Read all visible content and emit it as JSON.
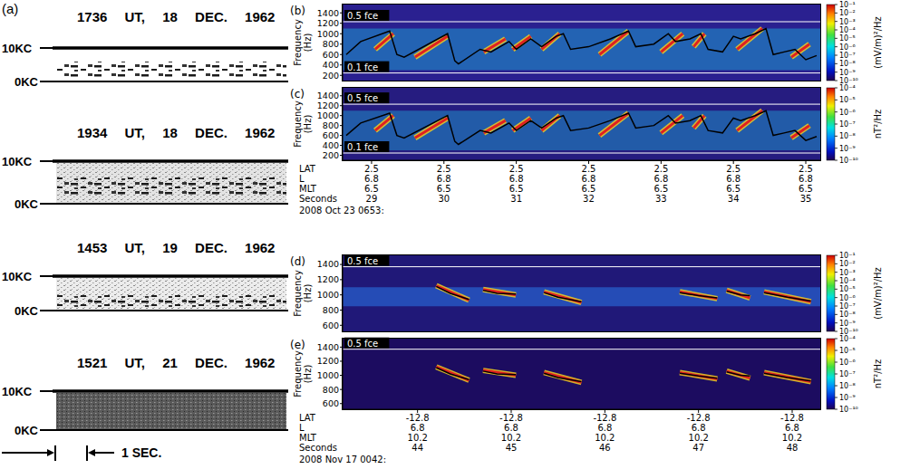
{
  "panel_a": {
    "label": "(a)",
    "strips": [
      {
        "title": "1736 UT, 18 DEC. 1962"
      },
      {
        "title": "1934 UT, 18 DEC. 1962"
      },
      {
        "title": "1453 UT, 19 DEC. 1962"
      },
      {
        "title": "1521 UT, 21 DEC. 1962"
      }
    ],
    "y_top_label": "10KC",
    "y_bottom_label": "0KC",
    "scale_label": "1 SEC."
  },
  "chart_data": [
    {
      "panel": "(b)",
      "type": "spectrogram",
      "y_label": "Frequency (Hz)",
      "xlim": [
        28.6,
        35.2
      ],
      "xticks": [
        29,
        30,
        31,
        32,
        33,
        34,
        35
      ],
      "ylim": [
        100,
        1560
      ],
      "yticks": [
        200,
        400,
        600,
        800,
        1000,
        1200,
        1400
      ],
      "tick_labels": "y",
      "reference_lines": [
        {
          "value": 1230,
          "label": "0.5 fce"
        },
        {
          "value": 246,
          "label": "0.1 fce"
        }
      ],
      "noise_band": [
        300,
        1100
      ],
      "elements": {
        "color": "#e02020",
        "items": [
          {
            "x": [
              29.05,
              29.3
            ],
            "y": [
              700,
              1000
            ]
          },
          {
            "x": [
              29.6,
              30.05
            ],
            "y": [
              550,
              950
            ]
          },
          {
            "x": [
              30.55,
              30.85
            ],
            "y": [
              650,
              900
            ]
          },
          {
            "x": [
              30.95,
              31.2
            ],
            "y": [
              700,
              950
            ]
          },
          {
            "x": [
              31.35,
              31.6
            ],
            "y": [
              700,
              1000
            ]
          },
          {
            "x": [
              32.15,
              32.55
            ],
            "y": [
              600,
              1050
            ]
          },
          {
            "x": [
              33.0,
              33.3
            ],
            "y": [
              650,
              1000
            ]
          },
          {
            "x": [
              33.45,
              33.6
            ],
            "y": [
              750,
              1000
            ]
          },
          {
            "x": [
              34.05,
              34.4
            ],
            "y": [
              700,
              1100
            ]
          },
          {
            "x": [
              34.8,
              35.05
            ],
            "y": [
              550,
              800
            ]
          }
        ]
      },
      "trace": {
        "color": "#000000",
        "x": [
          28.65,
          28.85,
          29.25,
          29.35,
          29.45,
          30.05,
          30.15,
          30.2,
          30.5,
          30.65,
          30.9,
          31.0,
          31.2,
          31.35,
          31.55,
          31.65,
          31.75,
          32.0,
          32.3,
          32.55,
          32.65,
          32.9,
          33.1,
          33.2,
          33.4,
          33.55,
          33.65,
          33.85,
          34.0,
          34.1,
          34.3,
          34.45,
          34.55,
          34.7,
          34.85,
          35.0,
          35.15
        ],
        "y": [
          600,
          850,
          1050,
          600,
          550,
          1000,
          480,
          420,
          700,
          650,
          850,
          700,
          900,
          750,
          950,
          1000,
          700,
          750,
          900,
          1050,
          750,
          800,
          1000,
          850,
          900,
          1000,
          700,
          650,
          950,
          900,
          1000,
          1100,
          600,
          650,
          700,
          500,
          580
        ]
      },
      "colorbar": {
        "label": "(mV/m)²/Hz",
        "log": true,
        "range": [
          1e-10,
          0.1
        ],
        "ticks": [
          {
            "value": 0.1,
            "label": "10⁻¹"
          },
          {
            "value": 0.01,
            "label": "10⁻²"
          },
          {
            "value": 0.001,
            "label": "10⁻³"
          },
          {
            "value": 0.0001,
            "label": "10⁻⁴"
          },
          {
            "value": 1e-05,
            "label": "10⁻⁵"
          },
          {
            "value": 1e-06,
            "label": "10⁻⁶"
          },
          {
            "value": 1e-07,
            "label": "10⁻⁷"
          },
          {
            "value": 1e-08,
            "label": "10⁻⁸"
          },
          {
            "value": 1e-09,
            "label": "10⁻⁹"
          },
          {
            "value": 1e-10,
            "label": "10⁻¹⁰"
          }
        ]
      }
    },
    {
      "panel": "(c)",
      "type": "spectrogram",
      "y_label": "Frequency (Hz)",
      "xlim": [
        28.6,
        35.2
      ],
      "xticks": [
        29,
        30,
        31,
        32,
        33,
        34,
        35
      ],
      "ylim": [
        100,
        1560
      ],
      "yticks": [
        200,
        400,
        600,
        800,
        1000,
        1200,
        1400
      ],
      "tick_labels": true,
      "x_label": "Seconds",
      "date": "2008 Oct 23 0653:",
      "x_rows": [
        {
          "label": "LAT",
          "values": [
            2.5,
            2.5,
            2.5,
            2.5,
            2.5,
            2.5,
            2.5
          ]
        },
        {
          "label": "L",
          "values": [
            6.8,
            6.8,
            6.8,
            6.8,
            6.8,
            6.8,
            6.8
          ]
        },
        {
          "label": "MLT",
          "values": [
            6.5,
            6.5,
            6.5,
            6.5,
            6.5,
            6.5,
            6.5
          ]
        }
      ],
      "reference_lines": [
        {
          "value": 1230,
          "label": "0.5 fce"
        },
        {
          "value": 246,
          "label": "0.1 fce"
        }
      ],
      "noise_band": [
        300,
        1100
      ],
      "elements": {
        "color": "#e02020",
        "items": [
          {
            "x": [
              29.05,
              29.3
            ],
            "y": [
              700,
              1000
            ]
          },
          {
            "x": [
              29.6,
              30.05
            ],
            "y": [
              550,
              950
            ]
          },
          {
            "x": [
              30.55,
              30.85
            ],
            "y": [
              650,
              900
            ]
          },
          {
            "x": [
              30.95,
              31.2
            ],
            "y": [
              700,
              950
            ]
          },
          {
            "x": [
              31.35,
              31.6
            ],
            "y": [
              700,
              1000
            ]
          },
          {
            "x": [
              32.15,
              32.55
            ],
            "y": [
              600,
              1050
            ]
          },
          {
            "x": [
              33.0,
              33.3
            ],
            "y": [
              650,
              1000
            ]
          },
          {
            "x": [
              33.45,
              33.6
            ],
            "y": [
              750,
              1000
            ]
          },
          {
            "x": [
              34.05,
              34.4
            ],
            "y": [
              700,
              1100
            ]
          },
          {
            "x": [
              34.8,
              35.05
            ],
            "y": [
              550,
              800
            ]
          }
        ]
      },
      "trace": {
        "color": "#000000",
        "x": [
          28.65,
          28.85,
          29.25,
          29.35,
          29.45,
          30.05,
          30.15,
          30.2,
          30.5,
          30.65,
          30.9,
          31.0,
          31.2,
          31.35,
          31.55,
          31.65,
          31.75,
          32.0,
          32.3,
          32.55,
          32.65,
          32.9,
          33.1,
          33.2,
          33.4,
          33.55,
          33.65,
          33.85,
          34.0,
          34.1,
          34.3,
          34.45,
          34.55,
          34.7,
          34.85,
          35.0,
          35.15
        ],
        "y": [
          600,
          850,
          1050,
          600,
          550,
          1000,
          480,
          420,
          700,
          650,
          850,
          700,
          900,
          750,
          950,
          1000,
          700,
          750,
          900,
          1050,
          750,
          800,
          1000,
          850,
          900,
          1000,
          700,
          650,
          950,
          900,
          1000,
          1100,
          600,
          650,
          700,
          500,
          580
        ]
      },
      "colorbar": {
        "label": "nT²/Hz",
        "log": true,
        "range": [
          1e-10,
          0.0001
        ],
        "ticks": [
          {
            "value": 0.0001,
            "label": "10⁻⁴"
          },
          {
            "value": 1e-05,
            "label": "10⁻⁵"
          },
          {
            "value": 1e-06,
            "label": "10⁻⁶"
          },
          {
            "value": 1e-07,
            "label": "10⁻⁷"
          },
          {
            "value": 1e-08,
            "label": "10⁻⁸"
          },
          {
            "value": 1e-09,
            "label": "10⁻⁹"
          },
          {
            "value": 1e-10,
            "label": "10⁻¹⁰"
          }
        ]
      }
    },
    {
      "panel": "(d)",
      "type": "spectrogram",
      "y_label": "Frequency (Hz)",
      "xlim": [
        43.2,
        48.3
      ],
      "xticks": [
        44,
        45,
        46,
        47,
        48
      ],
      "ylim": [
        520,
        1520
      ],
      "yticks": [
        600,
        800,
        1000,
        1200,
        1400
      ],
      "tick_labels": "y",
      "reference_lines": [
        {
          "value": 1370,
          "label": "0.5 fce"
        }
      ],
      "noise_band": [
        850,
        1100
      ],
      "elements": {
        "color": "#e02020",
        "items": [
          {
            "x": [
              44.2,
              44.55
            ],
            "y": [
              1120,
              930
            ]
          },
          {
            "x": [
              44.7,
              45.05
            ],
            "y": [
              1070,
              1000
            ]
          },
          {
            "x": [
              45.35,
              45.75
            ],
            "y": [
              1040,
              900
            ]
          },
          {
            "x": [
              46.8,
              47.2
            ],
            "y": [
              1040,
              950
            ]
          },
          {
            "x": [
              47.3,
              47.55
            ],
            "y": [
              1060,
              960
            ]
          },
          {
            "x": [
              47.7,
              48.2
            ],
            "y": [
              1040,
              910
            ]
          }
        ]
      },
      "trace": {
        "color": "#000000",
        "x": [
          44.2,
          44.35,
          44.55,
          44.6,
          44.7,
          44.85,
          45.05,
          45.1,
          45.35,
          45.5,
          45.75,
          45.8,
          46.8,
          47.0,
          47.2,
          47.25,
          47.3,
          47.45,
          47.55,
          47.6,
          47.7,
          47.95,
          48.2
        ],
        "y": [
          1110,
          1020,
          940,
          null,
          1060,
          1020,
          1010,
          null,
          1030,
          970,
          910,
          null,
          1030,
          990,
          960,
          null,
          1050,
          1000,
          990,
          null,
          1030,
          970,
          920
        ]
      },
      "colorbar": {
        "label": "(mV/m)²/Hz",
        "log": true,
        "range": [
          1e-10,
          0.1
        ],
        "ticks": [
          {
            "value": 0.1,
            "label": "10⁻¹"
          },
          {
            "value": 0.01,
            "label": "10⁻²"
          },
          {
            "value": 0.001,
            "label": "10⁻³"
          },
          {
            "value": 0.0001,
            "label": "10⁻⁴"
          },
          {
            "value": 1e-05,
            "label": "10⁻⁵"
          },
          {
            "value": 1e-06,
            "label": "10⁻⁶"
          },
          {
            "value": 1e-07,
            "label": "10⁻⁷"
          },
          {
            "value": 1e-08,
            "label": "10⁻⁸"
          },
          {
            "value": 1e-09,
            "label": "10⁻⁹"
          },
          {
            "value": 1e-10,
            "label": "10⁻¹⁰"
          }
        ]
      }
    },
    {
      "panel": "(e)",
      "type": "spectrogram",
      "y_label": "Frequency (Hz)",
      "xlim": [
        43.2,
        48.3
      ],
      "xticks": [
        44,
        45,
        46,
        47,
        48
      ],
      "ylim": [
        520,
        1520
      ],
      "yticks": [
        600,
        800,
        1000,
        1200,
        1400
      ],
      "tick_labels": true,
      "x_label": "Seconds",
      "date": "2008 Nov 17 0042:",
      "x_rows": [
        {
          "label": "LAT",
          "values": [
            -12.8,
            -12.8,
            -12.8,
            -12.8,
            -12.8
          ]
        },
        {
          "label": "L",
          "values": [
            6.8,
            6.8,
            6.8,
            6.8,
            6.8
          ]
        },
        {
          "label": "MLT",
          "values": [
            10.2,
            10.2,
            10.2,
            10.2,
            10.2
          ]
        }
      ],
      "reference_lines": [
        {
          "value": 1370,
          "label": "0.5 fce"
        }
      ],
      "elements": {
        "color": "#e02020",
        "items": [
          {
            "x": [
              44.2,
              44.55
            ],
            "y": [
              1120,
              930
            ]
          },
          {
            "x": [
              44.7,
              45.05
            ],
            "y": [
              1070,
              1000
            ]
          },
          {
            "x": [
              45.35,
              45.75
            ],
            "y": [
              1040,
              900
            ]
          },
          {
            "x": [
              46.8,
              47.2
            ],
            "y": [
              1040,
              950
            ]
          },
          {
            "x": [
              47.3,
              47.55
            ],
            "y": [
              1060,
              960
            ]
          },
          {
            "x": [
              47.7,
              48.2
            ],
            "y": [
              1040,
              910
            ]
          }
        ]
      },
      "trace": {
        "color": "#000000",
        "x": [
          44.2,
          44.35,
          44.55,
          44.6,
          44.7,
          44.85,
          45.05,
          45.1,
          45.35,
          45.5,
          45.75,
          45.8,
          46.8,
          47.0,
          47.2,
          47.25,
          47.3,
          47.45,
          47.55,
          47.6,
          47.7,
          47.95,
          48.2
        ],
        "y": [
          1110,
          1020,
          940,
          null,
          1060,
          1020,
          1010,
          null,
          1030,
          970,
          910,
          null,
          1030,
          990,
          960,
          null,
          1050,
          1000,
          990,
          null,
          1030,
          970,
          920
        ]
      },
      "colorbar": {
        "label": "nT²/Hz",
        "log": true,
        "range": [
          1e-10,
          0.0001
        ],
        "ticks": [
          {
            "value": 0.0001,
            "label": "10⁻⁴"
          },
          {
            "value": 1e-05,
            "label": "10⁻⁵"
          },
          {
            "value": 1e-06,
            "label": "10⁻⁶"
          },
          {
            "value": 1e-07,
            "label": "10⁻⁷"
          },
          {
            "value": 1e-08,
            "label": "10⁻⁸"
          },
          {
            "value": 1e-09,
            "label": "10⁻⁹"
          },
          {
            "value": 1e-10,
            "label": "10⁻¹⁰"
          }
        ]
      }
    }
  ]
}
